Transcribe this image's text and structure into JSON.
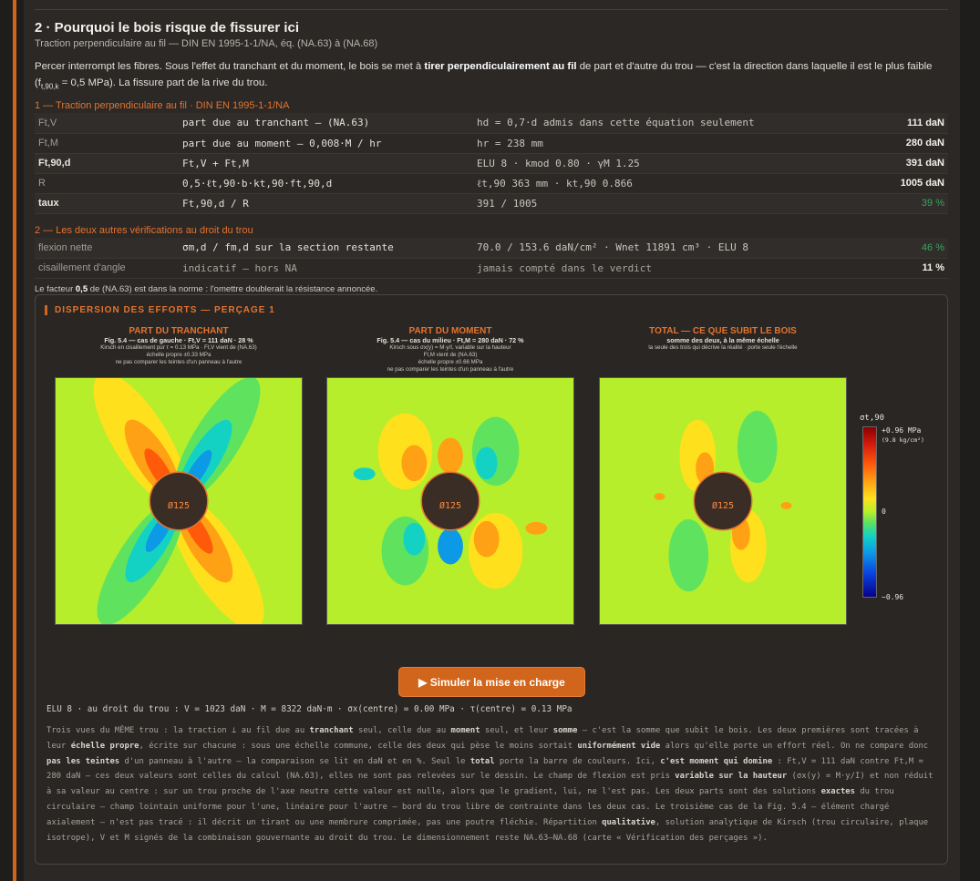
{
  "section": {
    "title": "2 · Pourquoi le bois risque de fissurer ici",
    "subtitle": "Traction perpendiculaire au fil — DIN EN 1995-1-1/NA, éq. (NA.63) à (NA.68)",
    "intro_a": "Percer interrompt les fibres. Sous l'effet du tranchant et du moment, le bois se met à ",
    "intro_bold": "tirer perpendiculairement au fil",
    "intro_b": " de part et d'autre du trou — c'est la direction dans laquelle il est le plus faible (f",
    "intro_sub": "t,90,k",
    "intro_c": " = 0,5 MPa). La fissure part de la rive du trou."
  },
  "block1": {
    "title": "1 — Traction perpendiculaire au fil · DIN EN 1995-1-1/NA",
    "rows": [
      {
        "label": "Ft,V",
        "formula": "part due au tranchant — (NA.63)",
        "param": "hd = 0,7·d admis dans cette équation seulement",
        "value": "111 daN"
      },
      {
        "label": "Ft,M",
        "formula": "part due au moment — 0,008·M / hr",
        "param": "hr = 238 mm",
        "value": "280 daN"
      },
      {
        "label": "Ft,90,d",
        "formula": "Ft,V + Ft,M",
        "param": "ELU 8 · kmod 0.80 · γM 1.25",
        "value": "391 daN"
      },
      {
        "label": "R",
        "formula": "0,5·ℓt,90·b·kt,90·ft,90,d",
        "param": "ℓt,90 363 mm · kt,90 0.866",
        "value": "1005 daN"
      },
      {
        "label": "taux",
        "formula": "Ft,90,d / R",
        "param": "391 / 1005",
        "value": "39 %"
      }
    ]
  },
  "block2": {
    "title": "2 — Les deux autres vérifications au droit du trou",
    "rows": [
      {
        "label": "flexion nette",
        "formula": "σm,d / fm,d sur la section restante",
        "param": "70.0 / 153.6 daN/cm² · Wnet 11891 cm³ · ELU 8",
        "value": "46 %"
      },
      {
        "label": "cisaillement d'angle",
        "formula": "indicatif — hors NA",
        "param": "jamais compté dans le verdict",
        "value": "11 %"
      }
    ]
  },
  "footnote_a": "Le facteur ",
  "footnote_bold": "0,5",
  "footnote_b": " de (NA.63) est dans la norme : l'omettre doublerait la résistance annoncée.",
  "dispersion": {
    "title": "DISPERSION DES EFFORTS — PERÇAGE 1",
    "panels": [
      {
        "title": "PART DU TRANCHANT",
        "cap1": "Fig. 5.4 — cas de gauche · Ft,V = 111 daN · 28 %",
        "cap2": "Kirsch en cisaillement pur τ = 0.13 MPa · Ft,V vient de (NA.63)",
        "cap3": "échelle propre ±0.33 MPa",
        "cap4": "ne pas comparer les teintes d'un panneau à l'autre",
        "hole": "Ø125"
      },
      {
        "title": "PART DU MOMENT",
        "cap1": "Fig. 5.4 — cas du milieu · Ft,M = 280 daN · 72 %",
        "cap2": "Kirsch sous σx(y) = M·y/I, variable sur la hauteur",
        "cap3": "Ft,M vient de (NA.63)",
        "cap4": "échelle propre ±0.66 MPa",
        "cap5": "ne pas comparer les teintes d'un panneau à l'autre",
        "hole": "Ø125"
      },
      {
        "title": "TOTAL — CE QUE SUBIT LE BOIS",
        "cap1": "somme des deux, à la même échelle",
        "cap2": "la seule des trois qui décrive la réalité · porte seule l'échelle",
        "hole": "Ø125"
      }
    ],
    "colorbar": {
      "symbol": "σt,90",
      "max": "+0.96 MPa",
      "max_sub": "(9.8 kg/cm²)",
      "zero": "0",
      "min": "−0.96"
    },
    "button": "▶ Simuler la mise en charge",
    "elu_line": "ELU 8 · au droit du trou : V = 1023 daN · M = 8322 daN·m · σx(centre) = 0.00 MPa · τ(centre) = 0.13 MPa",
    "explanation": [
      {
        "t": "Trois vues du MÊME trou : la traction ⊥ au fil due au "
      },
      {
        "b": "tranchant"
      },
      {
        "t": " seul, celle due au "
      },
      {
        "b": "moment"
      },
      {
        "t": " seul, et leur "
      },
      {
        "b": "somme"
      },
      {
        "t": " — c'est la somme que subit le bois. Les deux premières sont tracées à leur "
      },
      {
        "b": "échelle propre"
      },
      {
        "t": ", écrite sur chacune : sous une échelle commune, celle des deux qui pèse le moins sortait "
      },
      {
        "b": "uniformément vide"
      },
      {
        "t": " alors qu'elle porte un effort réel. On ne compare donc "
      },
      {
        "b": "pas les teintes"
      },
      {
        "t": " d'un panneau à l'autre — la comparaison se lit en daN et en %. Seul le "
      },
      {
        "b": "total"
      },
      {
        "t": " porte la barre de couleurs. Ici, "
      },
      {
        "b": "c'est moment qui domine"
      },
      {
        "t": " : Ft,V = 111 daN contre Ft,M = 280 daN — ces deux valeurs sont celles du calcul (NA.63), elles ne sont pas relevées sur le dessin. Le champ de flexion est pris "
      },
      {
        "b": "variable sur la hauteur"
      },
      {
        "t": " (σx(y) = M·y/I) et non réduit à sa valeur au centre : sur un trou proche de l'axe neutre cette valeur est nulle, alors que le gradient, lui, ne l'est pas. Les deux parts sont des solutions "
      },
      {
        "b": "exactes"
      },
      {
        "t": " du trou circulaire — champ lointain uniforme pour l'une, linéaire pour l'autre — bord du trou libre de contrainte dans les deux cas. Le troisième cas de la Fig. 5.4 — élément chargé axialement — n'est pas tracé : il décrit un tirant ou une membrure comprimée, pas une poutre fléchie. Répartition "
      },
      {
        "b": "qualitative"
      },
      {
        "t": ", solution analytique de Kirsch (trou circulaire, plaque isotrope), V et M signés de la combinaison gouvernante au droit du trou. Le dimensionnement reste NA.63–NA.68 (carte « Vérification des perçages »)."
      }
    ]
  }
}
